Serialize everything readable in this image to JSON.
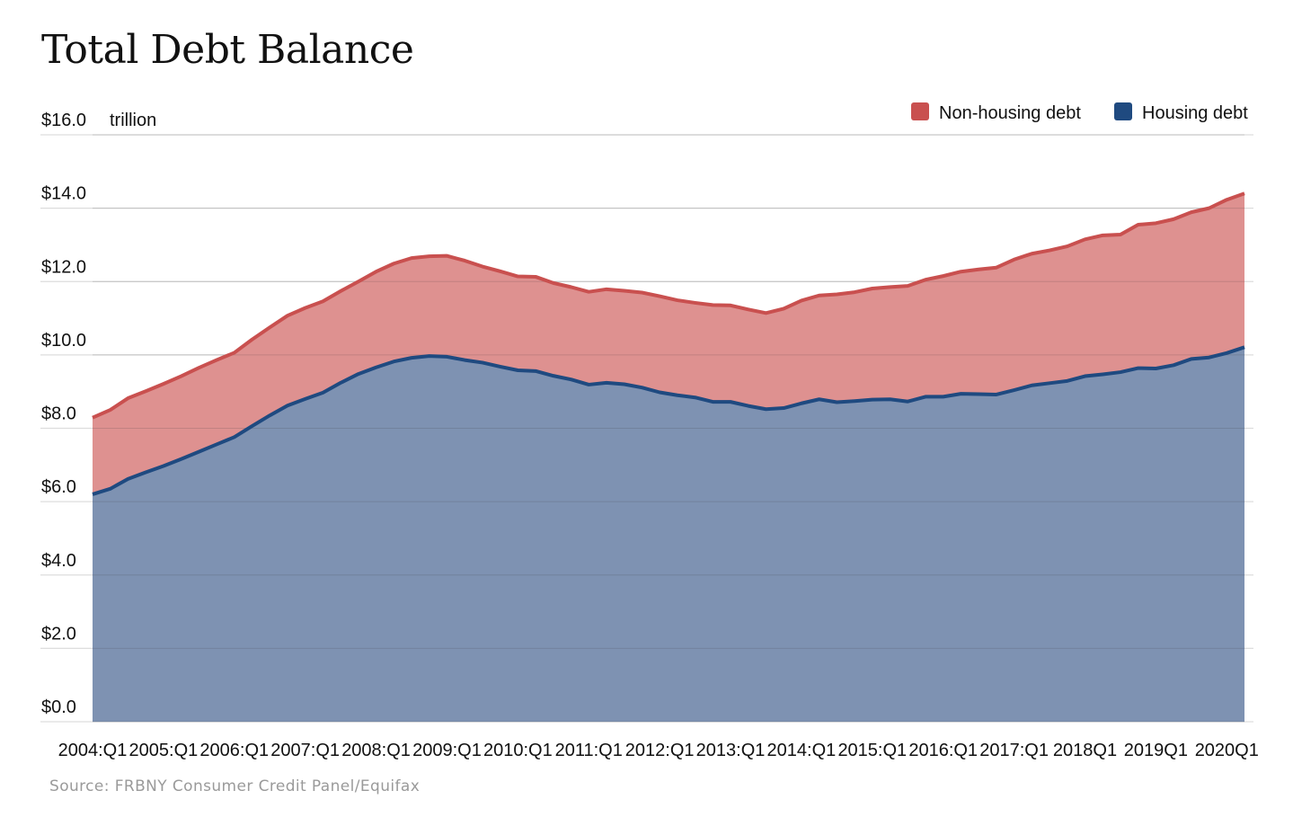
{
  "title": "Total Debt Balance",
  "source": "Source: FRBNY Consumer Credit Panel/Equifax",
  "chart_data": {
    "type": "area",
    "stacked": true,
    "unit_label": "trillion",
    "y_tick_labels": [
      "$0.0",
      "$2.0",
      "$4.0",
      "$6.0",
      "$8.0",
      "$10.0",
      "$12.0",
      "$14.0",
      "$16.0"
    ],
    "ylim": [
      0,
      16
    ],
    "x_tick_labels": [
      "2004:Q1",
      "2005:Q1",
      "2006:Q1",
      "2007:Q1",
      "2008:Q1",
      "2009:Q1",
      "2010:Q1",
      "2011:Q1",
      "2012:Q1",
      "2013:Q1",
      "2014:Q1",
      "2015:Q1",
      "2016:Q1",
      "2017:Q1",
      "2018Q1",
      "2019Q1",
      "2020Q1"
    ],
    "x_start": "2004:Q1",
    "x_end": "2020:Q1",
    "legend": {
      "placement": "top-right",
      "entries": [
        "Non-housing debt",
        "Housing debt"
      ]
    },
    "colors": {
      "non_housing_line": "#c9504f",
      "non_housing_fill": "#de9190",
      "housing_line": "#1f4a80",
      "housing_fill": "#7e92b2",
      "grid": "#dddddd"
    },
    "series": [
      {
        "name": "Housing debt",
        "values": [
          6.2,
          6.35,
          6.62,
          6.8,
          6.97,
          7.16,
          7.36,
          7.56,
          7.76,
          8.06,
          8.35,
          8.62,
          8.8,
          8.97,
          9.24,
          9.48,
          9.66,
          9.82,
          9.92,
          9.97,
          9.95,
          9.86,
          9.79,
          9.68,
          9.58,
          9.56,
          9.43,
          9.33,
          9.19,
          9.24,
          9.2,
          9.11,
          8.98,
          8.9,
          8.84,
          8.72,
          8.72,
          8.61,
          8.52,
          8.55,
          8.68,
          8.79,
          8.71,
          8.74,
          8.78,
          8.79,
          8.73,
          8.86,
          8.86,
          8.94,
          8.93,
          8.92,
          9.04,
          9.17,
          9.23,
          9.29,
          9.42,
          9.47,
          9.53,
          9.64,
          9.63,
          9.72,
          9.89,
          9.93,
          10.05,
          10.21
        ]
      },
      {
        "name": "Non-housing debt",
        "values": [
          2.09,
          2.15,
          2.2,
          2.21,
          2.24,
          2.26,
          2.29,
          2.3,
          2.3,
          2.36,
          2.4,
          2.45,
          2.48,
          2.49,
          2.5,
          2.52,
          2.61,
          2.67,
          2.72,
          2.72,
          2.75,
          2.71,
          2.62,
          2.6,
          2.56,
          2.57,
          2.53,
          2.52,
          2.53,
          2.55,
          2.55,
          2.59,
          2.62,
          2.59,
          2.58,
          2.64,
          2.63,
          2.63,
          2.62,
          2.71,
          2.8,
          2.83,
          2.94,
          2.97,
          3.03,
          3.06,
          3.15,
          3.19,
          3.29,
          3.33,
          3.4,
          3.46,
          3.56,
          3.59,
          3.62,
          3.67,
          3.73,
          3.79,
          3.75,
          3.91,
          3.96,
          3.98,
          4.0,
          4.07,
          4.18,
          4.19
        ]
      }
    ]
  }
}
